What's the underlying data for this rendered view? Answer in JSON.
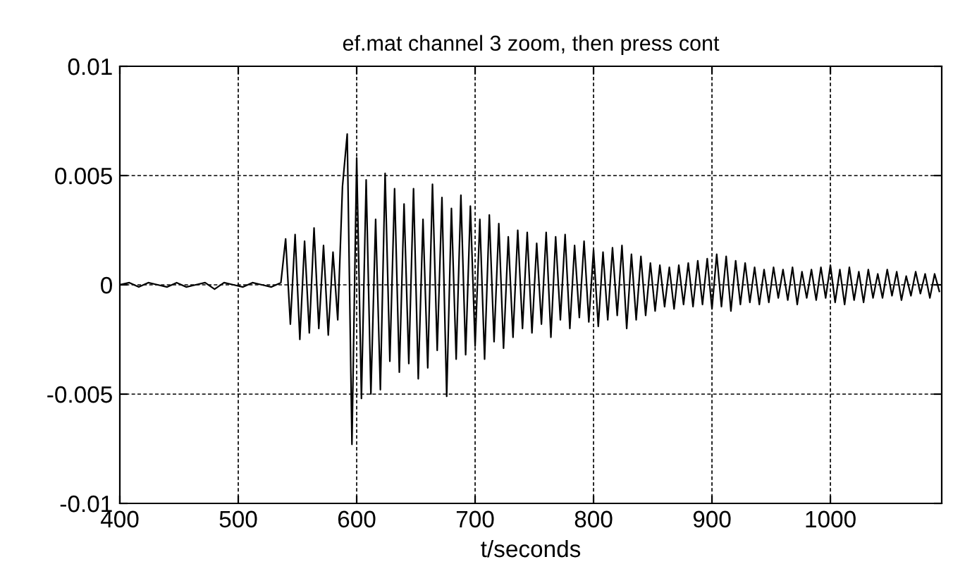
{
  "chart_data": {
    "type": "line",
    "title": "ef.mat channel 3 zoom, then press cont",
    "xlabel": "t/seconds",
    "series": [
      {
        "color": "#000000",
        "x": [
          400,
          408,
          416,
          424,
          432,
          440,
          448,
          456,
          464,
          472,
          480,
          488,
          496,
          504,
          512,
          520,
          528,
          536,
          540,
          544,
          548,
          552,
          556,
          560,
          564,
          568,
          572,
          576,
          580,
          584,
          588,
          592,
          596,
          600,
          604,
          608,
          612,
          616,
          620,
          624,
          628,
          632,
          636,
          640,
          644,
          648,
          652,
          656,
          660,
          664,
          668,
          672,
          676,
          680,
          684,
          688,
          692,
          696,
          700,
          704,
          708,
          712,
          716,
          720,
          724,
          728,
          732,
          736,
          740,
          744,
          748,
          752,
          756,
          760,
          764,
          768,
          772,
          776,
          780,
          784,
          788,
          792,
          796,
          800,
          804,
          808,
          812,
          816,
          820,
          824,
          828,
          832,
          836,
          840,
          844,
          848,
          852,
          856,
          860,
          864,
          868,
          872,
          876,
          880,
          884,
          888,
          892,
          896,
          900,
          904,
          908,
          912,
          916,
          920,
          924,
          928,
          932,
          936,
          940,
          944,
          948,
          952,
          956,
          960,
          964,
          968,
          972,
          976,
          980,
          984,
          988,
          992,
          996,
          1000,
          1004,
          1008,
          1012,
          1016,
          1020,
          1024,
          1028,
          1032,
          1036,
          1040,
          1044,
          1048,
          1052,
          1056,
          1060,
          1064,
          1068,
          1072,
          1076,
          1080,
          1084,
          1088,
          1092
        ],
        "values": [
          0,
          0.0001,
          -0.0001,
          0.0001,
          0,
          -0.0001,
          0.0001,
          -0.0001,
          0,
          0.0001,
          -0.0002,
          0.0001,
          0,
          -0.0001,
          0.0001,
          0,
          -0.0001,
          0.0001,
          0.0021,
          -0.0018,
          0.0023,
          -0.0025,
          0.002,
          -0.0022,
          0.0026,
          -0.002,
          0.0018,
          -0.0023,
          0.0015,
          -0.0016,
          0.0045,
          0.0069,
          -0.0073,
          0.0058,
          -0.0052,
          0.0048,
          -0.005,
          0.003,
          -0.0048,
          0.0051,
          -0.0035,
          0.0044,
          -0.004,
          0.0037,
          -0.0036,
          0.0044,
          -0.0043,
          0.003,
          -0.0038,
          0.0046,
          -0.003,
          0.004,
          -0.0051,
          0.0035,
          -0.0034,
          0.0041,
          -0.0032,
          0.0036,
          -0.0028,
          0.003,
          -0.0034,
          0.0032,
          -0.0026,
          0.0028,
          -0.0029,
          0.0022,
          -0.0024,
          0.0025,
          -0.002,
          0.0024,
          -0.0022,
          0.0019,
          -0.0018,
          0.0024,
          -0.0024,
          0.0022,
          -0.0016,
          0.0023,
          -0.002,
          0.0018,
          -0.0015,
          0.002,
          -0.0017,
          0.0016,
          -0.0019,
          0.0015,
          -0.0016,
          0.0017,
          -0.0014,
          0.0018,
          -0.002,
          0.0014,
          -0.0016,
          0.0013,
          -0.0014,
          0.001,
          -0.0012,
          0.0009,
          -0.001,
          0.0008,
          -0.0011,
          0.0009,
          -0.0009,
          0.001,
          -0.001,
          0.0011,
          -0.0009,
          0.0012,
          -0.0011,
          0.0014,
          -0.001,
          0.0013,
          -0.0012,
          0.0011,
          -0.0009,
          0.001,
          -0.0008,
          0.0008,
          -0.0009,
          0.0007,
          -0.0008,
          0.0008,
          -0.0006,
          0.0007,
          -0.0007,
          0.0008,
          -0.0009,
          0.0006,
          -0.0006,
          0.0007,
          -0.0007,
          0.0008,
          -0.0006,
          0.0009,
          -0.0008,
          0.0007,
          -0.0009,
          0.0008,
          -0.0007,
          0.0006,
          -0.0008,
          0.0007,
          -0.0006,
          0.0005,
          -0.0006,
          0.0007,
          -0.0005,
          0.0006,
          -0.0007,
          0.0004,
          -0.0005,
          0.0006,
          -0.0004,
          0.0005,
          -0.0006,
          0.0005,
          -0.0003
        ]
      }
    ],
    "xlim": [
      400,
      1094
    ],
    "xticks": [
      400,
      500,
      600,
      700,
      800,
      900,
      1000
    ],
    "ylim": [
      -0.01,
      0.01
    ],
    "yticks": [
      -0.01,
      -0.005,
      0,
      0.005,
      0.01
    ],
    "grid": true,
    "marker": "none",
    "line_style": "solid",
    "legend": false
  }
}
